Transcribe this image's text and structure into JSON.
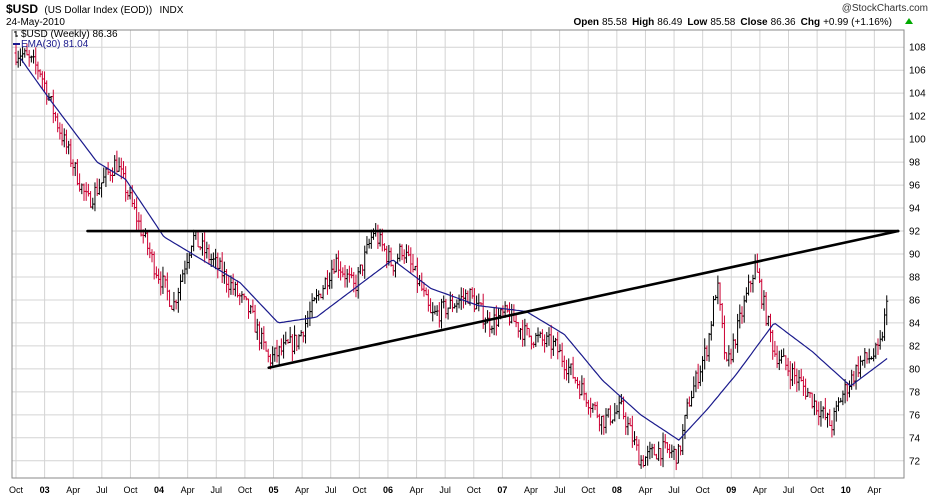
{
  "header": {
    "symbol": "$USD",
    "name": "(US Dollar Index (EOD))",
    "exchange": "INDX",
    "date": "24-May-2010",
    "credit": "@StockCharts.com",
    "stats": [
      {
        "label": "Open",
        "value": "85.58"
      },
      {
        "label": "High",
        "value": "86.49"
      },
      {
        "label": "Low",
        "value": "85.58"
      },
      {
        "label": "Close",
        "value": "86.36"
      },
      {
        "label": "Chg",
        "value": "+0.99 (+1.16%)"
      }
    ]
  },
  "legend": {
    "price": "$USD (Weekly) 86.36",
    "ema": "EMA(30) 81.04"
  },
  "colors": {
    "up": "#000000",
    "down": "#cc0033",
    "ema": "#1a1a8c",
    "grid": "#d4d4d4",
    "trendline": "#000000",
    "up_arrow": "#00aa00"
  },
  "chart_data": {
    "type": "ohlc",
    "title": "$USD (US Dollar Index (EOD)) INDX",
    "ylim": [
      70.5,
      109.5
    ],
    "yticks": [
      72,
      74,
      76,
      78,
      80,
      82,
      84,
      86,
      88,
      90,
      92,
      94,
      96,
      98,
      100,
      102,
      104,
      106,
      108
    ],
    "x_ticks": [
      "Oct",
      "03",
      "Apr",
      "Jul",
      "Oct",
      "04",
      "Apr",
      "Jul",
      "Oct",
      "05",
      "Apr",
      "Jul",
      "Oct",
      "06",
      "Apr",
      "Jul",
      "Oct",
      "07",
      "Apr",
      "Jul",
      "Oct",
      "08",
      "Apr",
      "Jul",
      "Oct",
      "09",
      "Apr",
      "Jul",
      "Oct",
      "10",
      "Apr"
    ],
    "x_ticks_bold": [
      "03",
      "04",
      "05",
      "06",
      "07",
      "08",
      "09",
      "10"
    ],
    "price_anchors": [
      {
        "date": "2002-10",
        "value": 107.5
      },
      {
        "date": "2002-12",
        "value": 106.0
      },
      {
        "date": "2003-02",
        "value": 101.0
      },
      {
        "date": "2003-05",
        "value": 94.5
      },
      {
        "date": "2003-08",
        "value": 98.0
      },
      {
        "date": "2003-12",
        "value": 89.0
      },
      {
        "date": "2004-02",
        "value": 85.5
      },
      {
        "date": "2004-04",
        "value": 91.5
      },
      {
        "date": "2004-07",
        "value": 88.5
      },
      {
        "date": "2004-10",
        "value": 85.0
      },
      {
        "date": "2004-12",
        "value": 80.8
      },
      {
        "date": "2005-03",
        "value": 82.5
      },
      {
        "date": "2005-05",
        "value": 86.0
      },
      {
        "date": "2005-07",
        "value": 89.5
      },
      {
        "date": "2005-09",
        "value": 87.0
      },
      {
        "date": "2005-11",
        "value": 92.0
      },
      {
        "date": "2006-01",
        "value": 89.0
      },
      {
        "date": "2006-02",
        "value": 90.5
      },
      {
        "date": "2006-04",
        "value": 87.0
      },
      {
        "date": "2006-05",
        "value": 84.5
      },
      {
        "date": "2006-07",
        "value": 85.5
      },
      {
        "date": "2006-09",
        "value": 86.5
      },
      {
        "date": "2006-11",
        "value": 84.0
      },
      {
        "date": "2007-01",
        "value": 84.8
      },
      {
        "date": "2007-03",
        "value": 83.0
      },
      {
        "date": "2007-06",
        "value": 82.0
      },
      {
        "date": "2007-09",
        "value": 78.0
      },
      {
        "date": "2007-11",
        "value": 75.5
      },
      {
        "date": "2008-01",
        "value": 76.5
      },
      {
        "date": "2008-03",
        "value": 72.0
      },
      {
        "date": "2008-05",
        "value": 73.0
      },
      {
        "date": "2008-07",
        "value": 72.5
      },
      {
        "date": "2008-08",
        "value": 77.0
      },
      {
        "date": "2008-10",
        "value": 82.0
      },
      {
        "date": "2008-11",
        "value": 87.5
      },
      {
        "date": "2008-12",
        "value": 80.0
      },
      {
        "date": "2009-03",
        "value": 89.0
      },
      {
        "date": "2009-05",
        "value": 81.5
      },
      {
        "date": "2009-08",
        "value": 78.5
      },
      {
        "date": "2009-11",
        "value": 75.0
      },
      {
        "date": "2009-12",
        "value": 77.5
      },
      {
        "date": "2010-02",
        "value": 80.5
      },
      {
        "date": "2010-04",
        "value": 81.5
      },
      {
        "date": "2010-05",
        "value": 86.4
      }
    ],
    "ema_anchors": [
      {
        "date": "2002-10",
        "value": 107.0
      },
      {
        "date": "2003-01",
        "value": 103.5
      },
      {
        "date": "2003-06",
        "value": 98.0
      },
      {
        "date": "2003-09",
        "value": 96.5
      },
      {
        "date": "2004-01",
        "value": 91.5
      },
      {
        "date": "2004-05",
        "value": 89.5
      },
      {
        "date": "2004-09",
        "value": 87.5
      },
      {
        "date": "2005-01",
        "value": 84.0
      },
      {
        "date": "2005-05",
        "value": 84.5
      },
      {
        "date": "2005-09",
        "value": 87.0
      },
      {
        "date": "2006-01",
        "value": 89.5
      },
      {
        "date": "2006-05",
        "value": 87.0
      },
      {
        "date": "2006-10",
        "value": 85.5
      },
      {
        "date": "2007-03",
        "value": 85.0
      },
      {
        "date": "2007-07",
        "value": 83.0
      },
      {
        "date": "2007-11",
        "value": 79.0
      },
      {
        "date": "2008-03",
        "value": 76.0
      },
      {
        "date": "2008-07",
        "value": 73.8
      },
      {
        "date": "2008-10",
        "value": 76.5
      },
      {
        "date": "2009-01",
        "value": 79.5
      },
      {
        "date": "2009-05",
        "value": 84.0
      },
      {
        "date": "2009-09",
        "value": 81.5
      },
      {
        "date": "2010-01",
        "value": 78.5
      },
      {
        "date": "2010-05",
        "value": 81.0
      }
    ],
    "trendlines": [
      {
        "name": "resistance",
        "from": {
          "date": "2003-05",
          "value": 92.0
        },
        "to": {
          "date": "2010-06",
          "value": 92.0
        }
      },
      {
        "name": "support",
        "from": {
          "date": "2004-12",
          "value": 80.1
        },
        "to": {
          "date": "2010-06",
          "value": 92.0
        }
      }
    ]
  }
}
